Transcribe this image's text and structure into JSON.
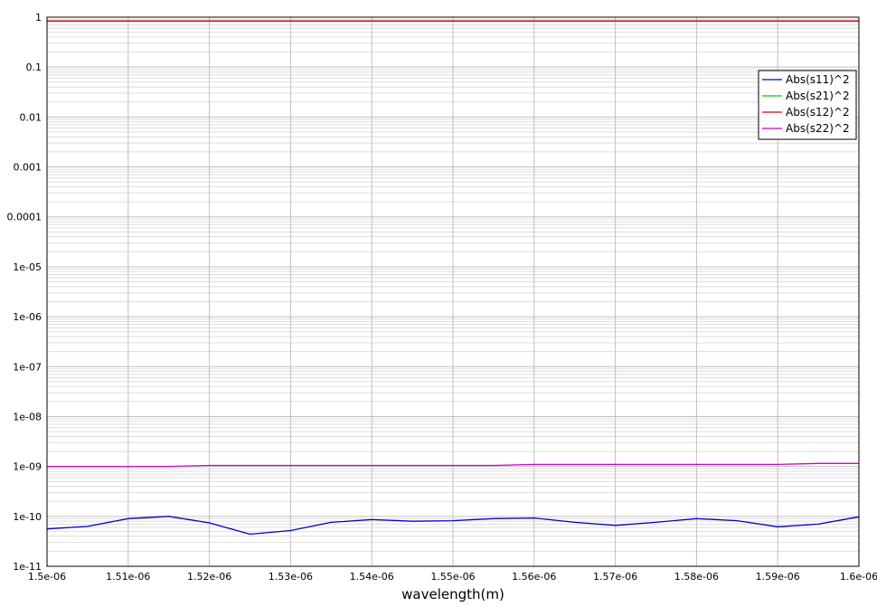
{
  "chart_data": {
    "type": "line",
    "title": "",
    "xlabel": "wavelength(m)",
    "ylabel": "",
    "yscale": "log",
    "grid": true,
    "legend_position": "top-right",
    "xlim": [
      1.5e-06,
      1.6e-06
    ],
    "ylim": [
      1e-11,
      1
    ],
    "x_ticks": [
      1.5e-06,
      1.51e-06,
      1.52e-06,
      1.53e-06,
      1.54e-06,
      1.55e-06,
      1.56e-06,
      1.57e-06,
      1.58e-06,
      1.59e-06,
      1.6e-06
    ],
    "x_tick_labels": [
      "1.5e-06",
      "1.51e-06",
      "1.52e-06",
      "1.53e-06",
      "1.54e-06",
      "1.55e-06",
      "1.56e-06",
      "1.57e-06",
      "1.58e-06",
      "1.59e-06",
      "1.6e-06"
    ],
    "y_ticks": [
      1,
      0.1,
      0.01,
      0.001,
      0.0001,
      1e-05,
      1e-06,
      1e-07,
      1e-08,
      1e-09,
      1e-10,
      1e-11
    ],
    "y_tick_labels": [
      "1",
      "0.1",
      "0.01",
      "0.001",
      "0.0001",
      "1e-05",
      "1e-06",
      "1e-07",
      "1e-08",
      "1e-09",
      "1e-10",
      "1e-11"
    ],
    "x": [
      1.5e-06,
      1.505e-06,
      1.51e-06,
      1.515e-06,
      1.52e-06,
      1.525e-06,
      1.53e-06,
      1.535e-06,
      1.54e-06,
      1.545e-06,
      1.55e-06,
      1.555e-06,
      1.56e-06,
      1.565e-06,
      1.57e-06,
      1.575e-06,
      1.58e-06,
      1.585e-06,
      1.59e-06,
      1.595e-06,
      1.6e-06
    ],
    "series": [
      {
        "name": "Abs(s11)^2",
        "color": "#0000cc",
        "values": [
          5.6e-11,
          6.3e-11,
          9e-11,
          1e-10,
          7.4e-11,
          4.4e-11,
          5.2e-11,
          7.6e-11,
          8.6e-11,
          8e-11,
          8.2e-11,
          9e-11,
          9.3e-11,
          7.6e-11,
          6.6e-11,
          7.6e-11,
          9e-11,
          8.2e-11,
          6.2e-11,
          7e-11,
          9.8e-11
        ]
      },
      {
        "name": "Abs(s21)^2",
        "color": "#00cc00",
        "values": [
          0.84,
          0.84,
          0.84,
          0.84,
          0.84,
          0.84,
          0.84,
          0.84,
          0.84,
          0.84,
          0.84,
          0.84,
          0.84,
          0.84,
          0.84,
          0.84,
          0.84,
          0.84,
          0.84,
          0.84,
          0.84
        ]
      },
      {
        "name": "Abs(s12)^2",
        "color": "#dd0000",
        "values": [
          0.84,
          0.84,
          0.84,
          0.84,
          0.84,
          0.84,
          0.84,
          0.84,
          0.84,
          0.84,
          0.84,
          0.84,
          0.84,
          0.84,
          0.84,
          0.84,
          0.84,
          0.84,
          0.84,
          0.84,
          0.84
        ]
      },
      {
        "name": "Abs(s22)^2",
        "color": "#cc00cc",
        "values": [
          1e-09,
          1e-09,
          1e-09,
          1e-09,
          1.05e-09,
          1.05e-09,
          1.05e-09,
          1.05e-09,
          1.05e-09,
          1.05e-09,
          1.05e-09,
          1.05e-09,
          1.1e-09,
          1.1e-09,
          1.1e-09,
          1.1e-09,
          1.1e-09,
          1.1e-09,
          1.1e-09,
          1.15e-09,
          1.15e-09
        ]
      }
    ]
  }
}
